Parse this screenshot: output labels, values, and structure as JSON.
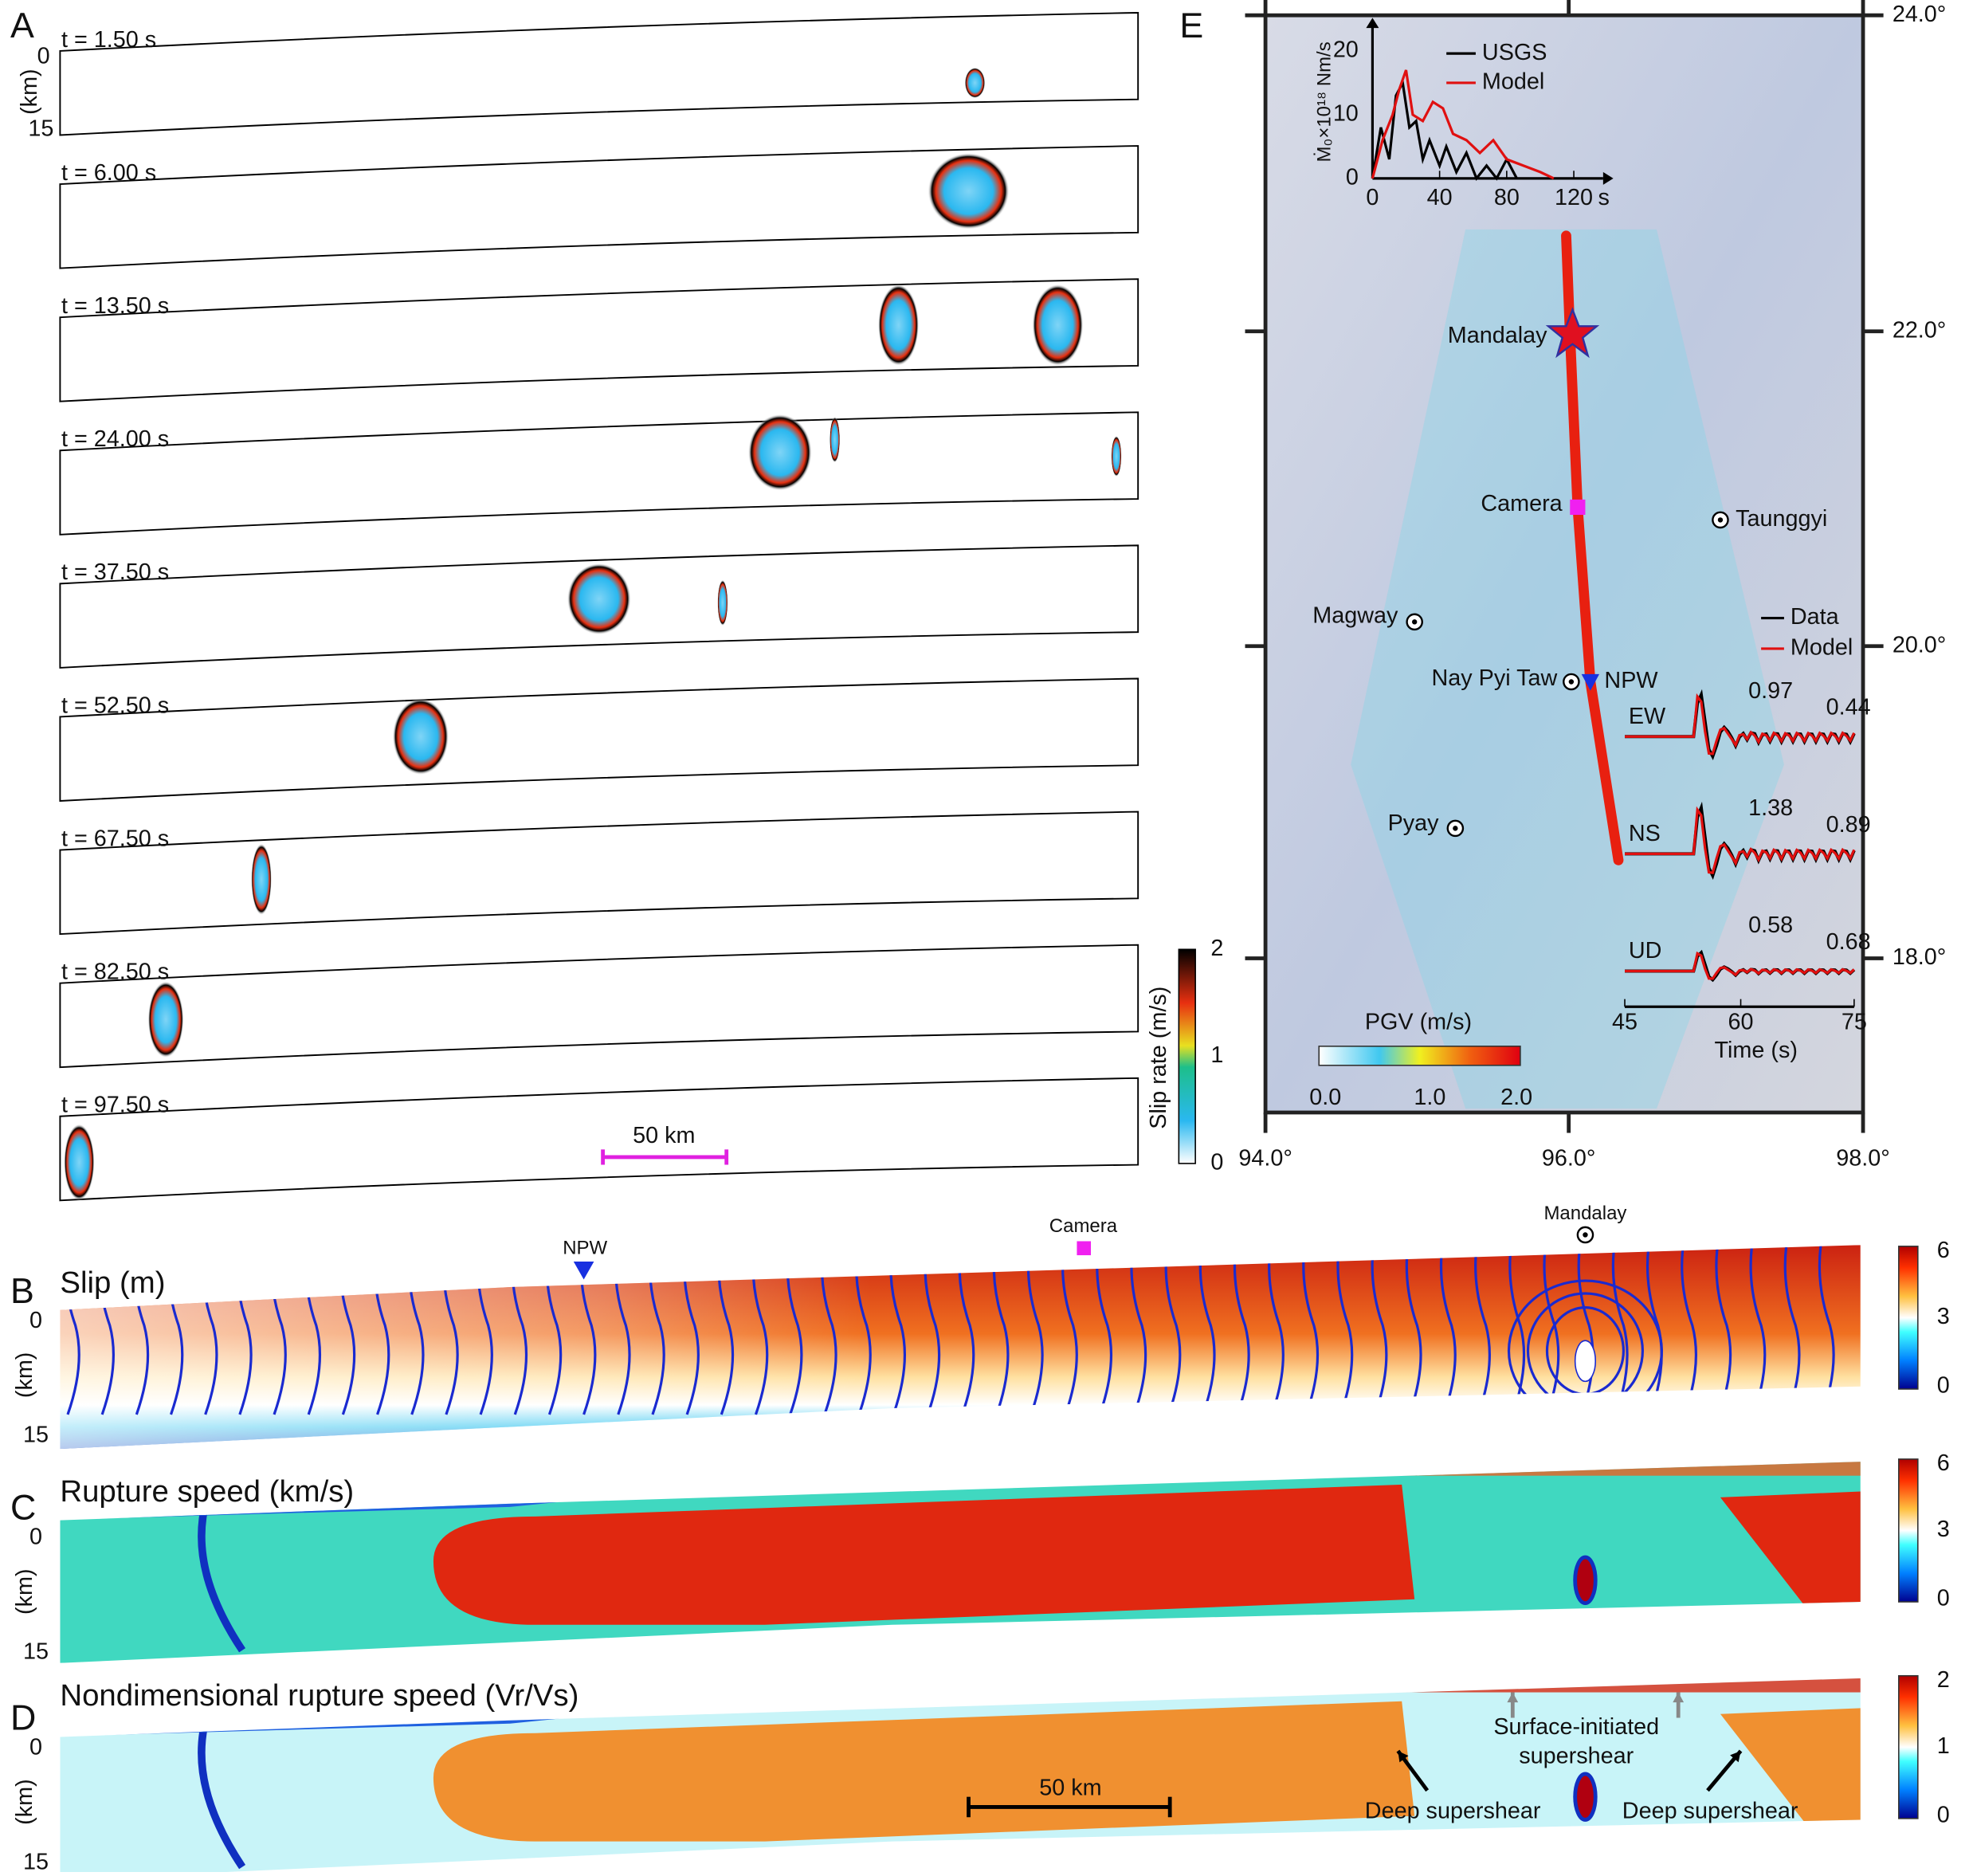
{
  "panel_a": {
    "label": "A",
    "times": [
      "t = 1.50 s",
      "t = 6.00 s",
      "t = 13.50 s",
      "t = 24.00 s",
      "t = 37.50 s",
      "t = 52.50 s",
      "t = 67.50 s",
      "t = 82.50 s",
      "t = 97.50 s"
    ],
    "depth_top": "0",
    "depth_unit": "(km)",
    "depth_bottom": "15",
    "scale_bar": "50 km",
    "colorbar": {
      "title": "Slip rate (m/s)",
      "ticks": [
        "2",
        "1",
        "0"
      ]
    }
  },
  "panel_e": {
    "label": "E",
    "lat_labels": [
      "24.0°",
      "22.0°",
      "20.0°",
      "18.0°"
    ],
    "lon_labels": [
      "94.0°",
      "96.0°",
      "98.0°"
    ],
    "places": [
      "Mandalay",
      "Camera",
      "Taunggyi",
      "Magway",
      "Nay Pyi Taw",
      "NPW",
      "Pyay"
    ],
    "moment_inset": {
      "legend": [
        "USGS",
        "Model"
      ],
      "y_label": "Ṁ₀×10¹⁸ Nm/s",
      "y_ticks": [
        "0",
        "10",
        "20"
      ],
      "x_ticks": [
        "0",
        "40",
        "80",
        "120"
      ],
      "x_unit": "s"
    },
    "waveforms": {
      "legend": [
        "Data",
        "Model"
      ],
      "components": [
        {
          "name": "EW",
          "values": [
            "0.97",
            "0.44"
          ]
        },
        {
          "name": "NS",
          "values": [
            "1.38",
            "0.89"
          ]
        },
        {
          "name": "UD",
          "values": [
            "0.58",
            "0.68"
          ]
        }
      ],
      "x_ticks": [
        "45",
        "60",
        "75"
      ],
      "x_label": "Time (s)"
    },
    "pgv_colorbar": {
      "title": "PGV (m/s)",
      "ticks": [
        "0.0",
        "1.0",
        "2.0"
      ]
    }
  },
  "panels_bcd": [
    {
      "label": "B",
      "title": "Slip (m)",
      "depth": [
        "0",
        "(km)",
        "15"
      ],
      "colorbar_ticks": [
        "6",
        "3",
        "0"
      ]
    },
    {
      "label": "C",
      "title": "Rupture speed (km/s)",
      "depth": [
        "0",
        "(km)",
        "15"
      ],
      "colorbar_ticks": [
        "6",
        "3",
        "0"
      ]
    },
    {
      "label": "D",
      "title": "Nondimensional rupture speed (Vr/Vs)",
      "depth": [
        "0",
        "(km)",
        "15"
      ],
      "colorbar_ticks": [
        "2",
        "1",
        "0"
      ]
    }
  ],
  "markers": [
    "NPW",
    "Camera",
    "Mandalay"
  ],
  "annotations": {
    "scale_bar": "50 km",
    "surface": [
      "Surface-initiated",
      "supershear"
    ],
    "deep": [
      "Deep supershear",
      "Deep supershear"
    ]
  }
}
